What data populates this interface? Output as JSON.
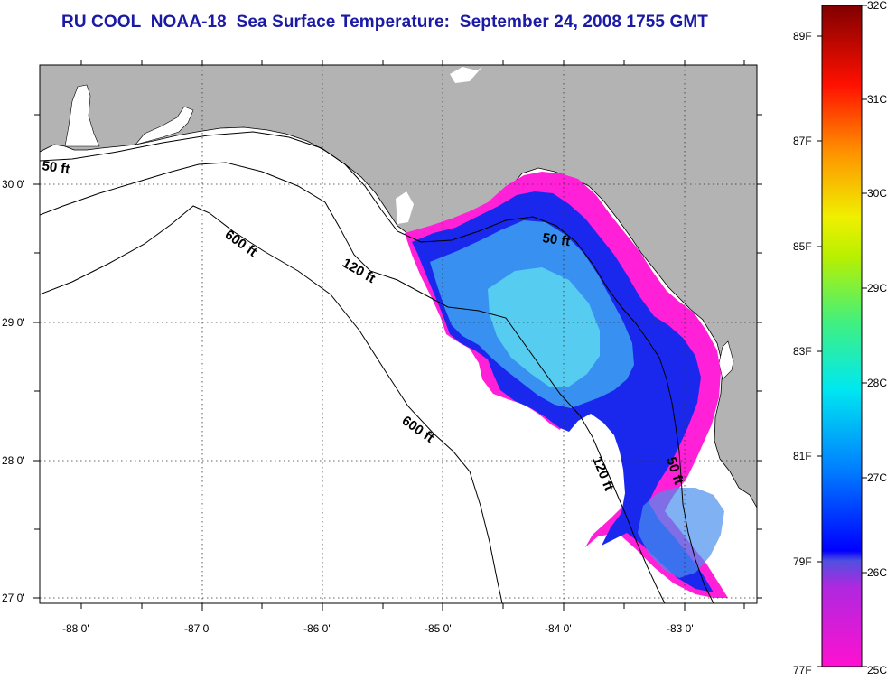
{
  "title": "RU COOL  NOAA-18  Sea Surface Temperature:  September 24, 2008 1755 GMT",
  "map": {
    "lon_ticks": [
      "-88 0'",
      "-87 0'",
      "-86 0'",
      "-85 0'",
      "-84 0'",
      "-83 0'"
    ],
    "lat_ticks": [
      "30 0'",
      "29 0'",
      "28 0'",
      "27 0'"
    ],
    "land_color": "#b3b3b3",
    "contour_labels": [
      "50 ft",
      "600 ft",
      "120 ft",
      "600 ft",
      "50 ft",
      "120 ft",
      "50 ft"
    ]
  },
  "colorbar": {
    "celsius": [
      "32C",
      "31C",
      "30C",
      "29C",
      "28C",
      "27C",
      "26C",
      "25C"
    ],
    "fahrenheit": [
      "89F",
      "87F",
      "85F",
      "83F",
      "81F",
      "79F",
      "77F"
    ]
  }
}
